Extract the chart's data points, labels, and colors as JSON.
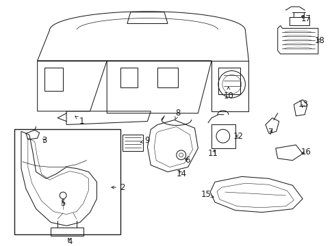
{
  "bg_color": "#ffffff",
  "line_color": "#1a1a1a",
  "fig_width": 4.89,
  "fig_height": 3.6,
  "dpi": 100,
  "font_size": 8.5,
  "lw": 0.75
}
